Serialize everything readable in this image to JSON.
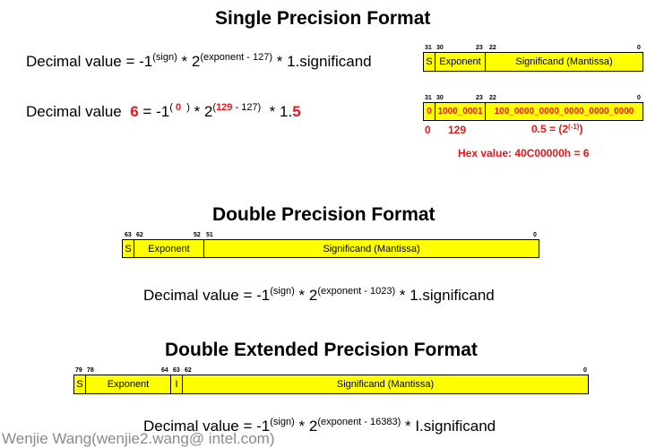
{
  "single": {
    "title": "Single Precision Format",
    "formula": {
      "prefix": "Decimal value = -1",
      "sup1": "(sign)",
      "mid": " * 2",
      "sup2": "(exponent - 127)",
      "suffix": " * 1.significand"
    },
    "bits": {
      "b31": "31",
      "b30": "30",
      "b23": "23",
      "b22": "22",
      "b0": "0"
    },
    "fields": {
      "sign": "S",
      "exponent": "Exponent",
      "significand": "Significand (Mantissa)"
    },
    "example": {
      "lead": "Decimal value",
      "value": "6",
      "eq": "= -1",
      "sup_sign_open": "(",
      "sup_sign_val": "0",
      "sup_sign_close": ")",
      "times2": " * 2",
      "sup_exp_open": "(",
      "sup_exp_val": "129",
      "sup_exp_rest": " - 127)",
      "times1": " *  1.",
      "frac": "5"
    },
    "example_bits": {
      "b31": "31",
      "b30": "30",
      "b23": "23",
      "b22": "22",
      "b0": "0"
    },
    "example_fields": {
      "sign": "0",
      "exponent": "1000_0001",
      "significand": "100_0000_0000_0000_0000_0000"
    },
    "labels": {
      "sign": "0",
      "exponent": "129",
      "frac_prefix": "0.5 = (2",
      "frac_sup": "(-1)",
      "frac_suffix": ")"
    },
    "hex": "Hex value: 40C00000h  =  6"
  },
  "double": {
    "title": "Double Precision Format",
    "bits": {
      "b63": "63",
      "b62": "62",
      "b52": "52",
      "b51": "51",
      "b0": "0"
    },
    "fields": {
      "sign": "S",
      "exponent": "Exponent",
      "significand": "Significand (Mantissa)"
    },
    "formula": {
      "prefix": "Decimal value = -1",
      "sup1": "(sign)",
      "mid": " * 2",
      "sup2": "(exponent - 1023)",
      "suffix": " * 1.significand"
    }
  },
  "extended": {
    "title": "Double Extended Precision Format",
    "bits": {
      "b79": "79",
      "b78": "78",
      "b64": "64",
      "b63": "63",
      "b62": "62",
      "b0": "0"
    },
    "fields": {
      "sign": "S",
      "exponent": "Exponent",
      "integer": "I",
      "significand": "Significand (Mantissa)"
    },
    "formula": {
      "prefix": "Decimal value = -1",
      "sup1": "(sign)",
      "mid": " * 2",
      "sup2": "(exponent - 16383)",
      "suffix": " * I.significand"
    }
  },
  "footer": "Wenjie Wang(wenjie2.wang@ intel.com)",
  "colors": {
    "field_fill": "#ffff00",
    "highlight": "#e8161b"
  }
}
